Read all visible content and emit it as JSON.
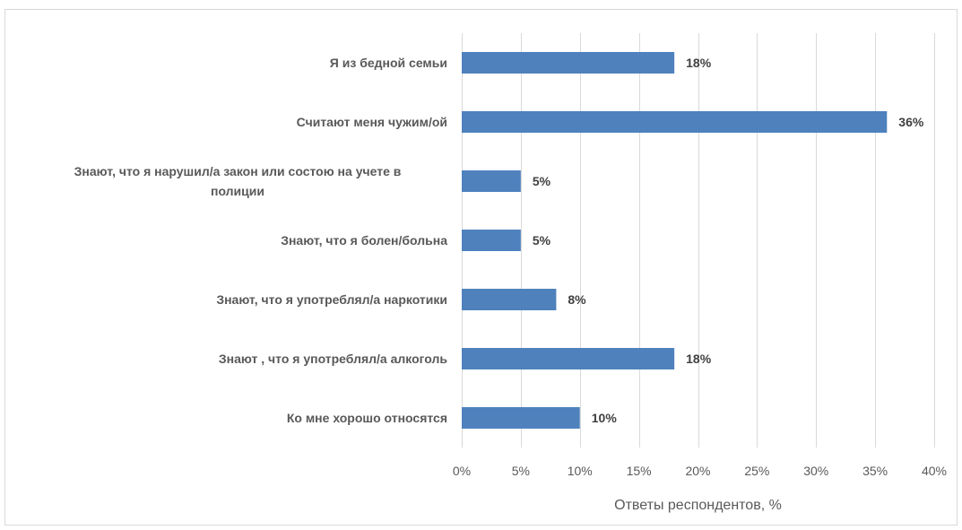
{
  "chart_data": {
    "type": "bar",
    "orientation": "horizontal",
    "categories": [
      "Я из бедной семьи",
      "Считают меня чужим/ой",
      "Знают, что я нарушил/а закон или состою на учете в полиции",
      "Знают, что я болен/больна",
      "Знают, что я употреблял/а наркотики",
      "Знают , что я употреблял/а алкоголь",
      "Ко мне хорошо относятся"
    ],
    "category_lines": [
      [
        "Я из бедной семьи"
      ],
      [
        "Считают меня чужим/ой"
      ],
      [
        "Знают, что я нарушил/а закон или состою на учете в",
        "полиции"
      ],
      [
        "Знают, что я болен/больна"
      ],
      [
        "Знают, что я употреблял/а наркотики"
      ],
      [
        "Знают , что я употреблял/а алкоголь"
      ],
      [
        "Ко мне хорошо относятся"
      ]
    ],
    "values": [
      18,
      36,
      5,
      5,
      8,
      18,
      10
    ],
    "data_labels": [
      "18%",
      "36%",
      "5%",
      "5%",
      "8%",
      "18%",
      "10%"
    ],
    "xlim": [
      0,
      40
    ],
    "xticks": [
      0,
      5,
      10,
      15,
      20,
      25,
      30,
      35,
      40
    ],
    "xtick_labels": [
      "0%",
      "5%",
      "10%",
      "15%",
      "20%",
      "25%",
      "30%",
      "35%",
      "40%"
    ],
    "xlabel": "Ответы респондентов, %",
    "title": "",
    "grid": true,
    "bar_color": "#4f81bd",
    "grid_color": "#d9d9d9"
  }
}
